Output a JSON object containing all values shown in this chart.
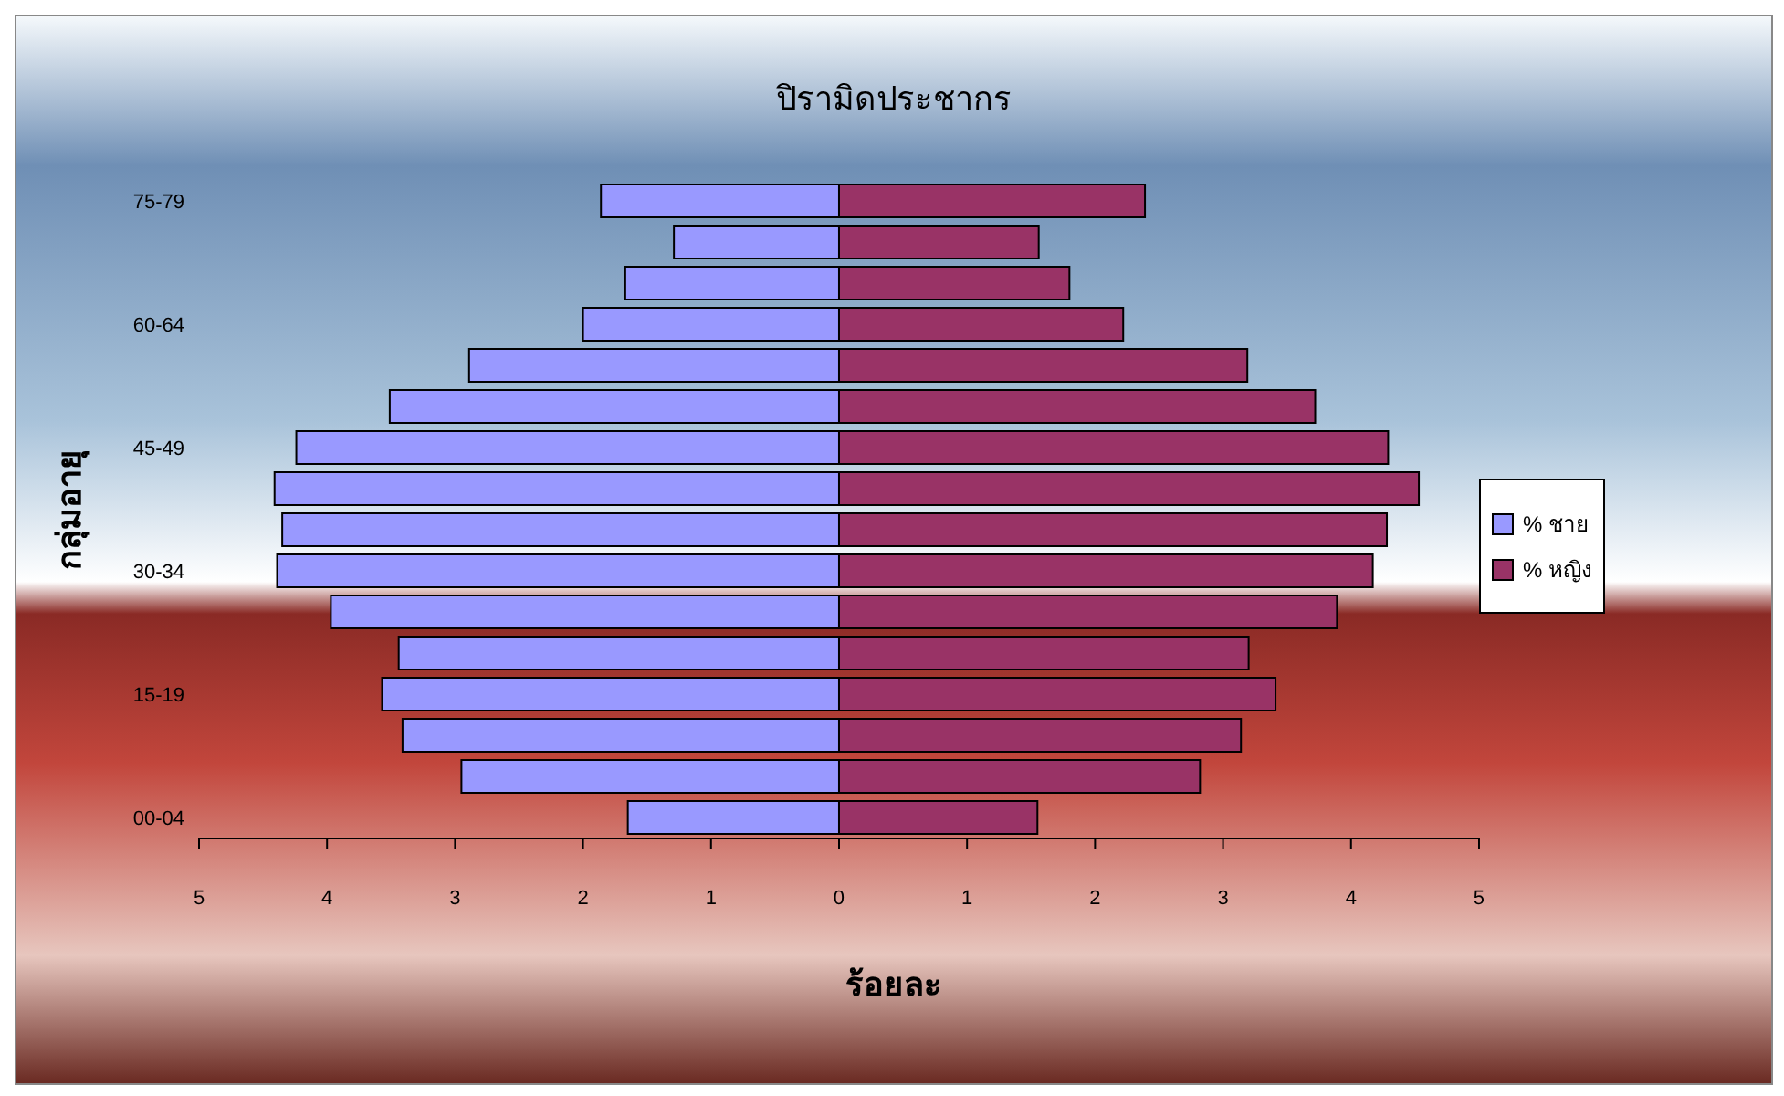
{
  "chart_data": {
    "type": "bar",
    "title": "ปิรามิดประชากร",
    "xlabel": "ร้อยละ",
    "ylabel": "กลุ่มอายุ",
    "orientation": "horizontal",
    "stacked": true,
    "legend": "right",
    "grid": false,
    "categories": [
      "75-79",
      null,
      null,
      "60-64",
      null,
      null,
      "45-49",
      null,
      null,
      "30-34",
      null,
      null,
      "15-19",
      null,
      null,
      "00-04"
    ],
    "series": [
      {
        "name": "% ชาย",
        "color": "#9999ff",
        "values": [
          -1.86,
          -1.29,
          -1.67,
          -2.0,
          -2.89,
          -3.51,
          -4.24,
          -4.41,
          -4.35,
          -4.39,
          -3.97,
          -3.44,
          -3.57,
          -3.41,
          -2.95,
          -1.65
        ]
      },
      {
        "name": "% หญิง",
        "color": "#993366",
        "values": [
          2.39,
          1.56,
          1.8,
          2.22,
          3.19,
          3.72,
          4.29,
          4.53,
          4.28,
          4.17,
          3.89,
          3.2,
          3.41,
          3.14,
          2.82,
          1.55
        ]
      }
    ],
    "xlim": [
      -5,
      5
    ],
    "xticks": [
      {
        "value": -5,
        "label": "5"
      },
      {
        "value": -4,
        "label": "4"
      },
      {
        "value": -3,
        "label": "3"
      },
      {
        "value": -2,
        "label": "2"
      },
      {
        "value": -1,
        "label": "1"
      },
      0,
      1,
      2,
      3,
      4,
      5
    ]
  }
}
